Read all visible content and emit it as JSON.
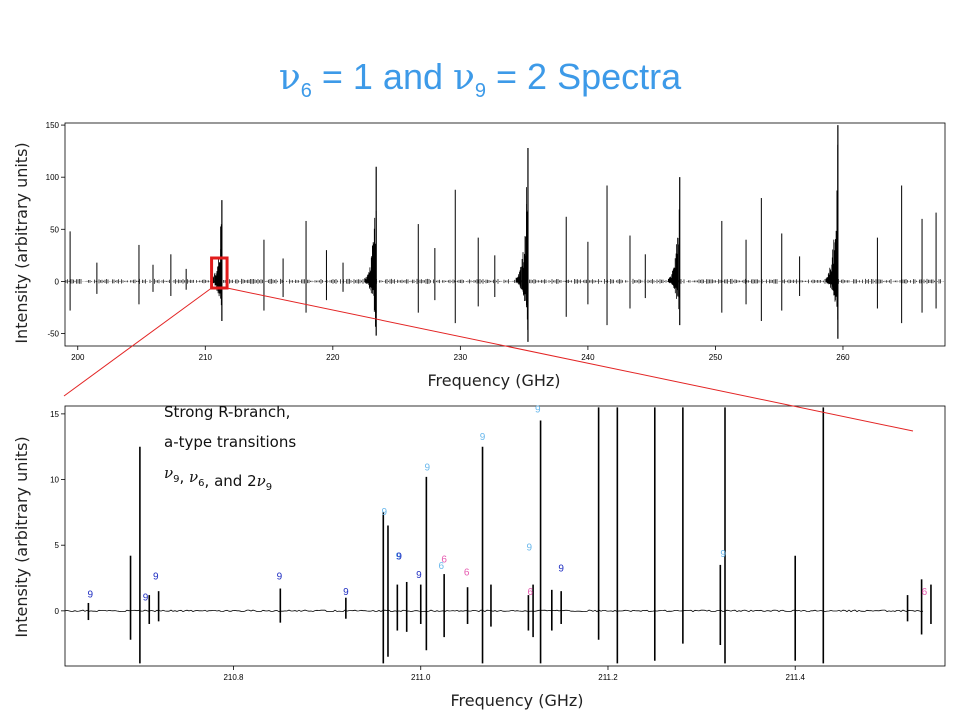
{
  "title": {
    "nu": "ν",
    "sub6": "6",
    "eq1": " = 1 and ",
    "sub9": "9",
    "eq2": " = 2 Spectra"
  },
  "colors": {
    "title": "#3d9ae8",
    "zoom_box": "#e11b1b",
    "zoom_line": "#e32424",
    "marker_nu9": "#1f2ec2",
    "marker_nu6": "#e65bb0",
    "marker_2nu9": "#6ab8ec"
  },
  "annotation": {
    "line1": "Strong R-branch,",
    "line2": "a-type transitions",
    "line3": "ν9, ν6, and 2ν9"
  },
  "chart_data": [
    {
      "type": "line",
      "title": "",
      "xlabel": "Frequency (GHz)",
      "ylabel": "Intensity (arbitrary units)",
      "xlim": [
        199,
        268
      ],
      "ylim": [
        -62,
        152
      ],
      "xticks": [
        200,
        210,
        220,
        230,
        240,
        250,
        260
      ],
      "yticks": [
        -50,
        0,
        50,
        100,
        150
      ],
      "grid": false,
      "r_branch_peaks": [
        {
          "x": 211.3,
          "max": 78,
          "min": -38
        },
        {
          "x": 223.4,
          "max": 110,
          "min": -52
        },
        {
          "x": 235.3,
          "max": 128,
          "min": -58
        },
        {
          "x": 247.2,
          "max": 100,
          "min": -42
        },
        {
          "x": 259.6,
          "max": 150,
          "min": -55
        }
      ],
      "lines": [
        [
          199.4,
          48,
          -28
        ],
        [
          201.5,
          18,
          -12
        ],
        [
          204.8,
          35,
          -22
        ],
        [
          205.9,
          16,
          -10
        ],
        [
          207.3,
          26,
          -14
        ],
        [
          208.5,
          12,
          -8
        ],
        [
          214.6,
          40,
          -28
        ],
        [
          216.1,
          22,
          -15
        ],
        [
          217.9,
          58,
          -30
        ],
        [
          219.5,
          30,
          -18
        ],
        [
          220.8,
          18,
          -10
        ],
        [
          226.7,
          55,
          -30
        ],
        [
          228.0,
          32,
          -18
        ],
        [
          229.6,
          88,
          -40
        ],
        [
          231.4,
          42,
          -24
        ],
        [
          232.7,
          25,
          -15
        ],
        [
          238.3,
          62,
          -34
        ],
        [
          240.0,
          38,
          -22
        ],
        [
          241.5,
          92,
          -42
        ],
        [
          243.3,
          44,
          -26
        ],
        [
          244.5,
          26,
          -16
        ],
        [
          250.5,
          58,
          -30
        ],
        [
          252.4,
          40,
          -22
        ],
        [
          253.6,
          80,
          -38
        ],
        [
          255.2,
          46,
          -28
        ],
        [
          256.6,
          24,
          -14
        ],
        [
          262.7,
          42,
          -26
        ],
        [
          264.6,
          92,
          -40
        ],
        [
          266.2,
          60,
          -30
        ],
        [
          267.3,
          66,
          -26
        ]
      ],
      "zoom_region": [
        210.65,
        211.55
      ]
    },
    {
      "type": "line",
      "title": "",
      "xlabel": "Frequency (GHz)",
      "ylabel": "Intensity (arbitrary units)",
      "xlim": [
        210.62,
        211.56
      ],
      "ylim": [
        -4.2,
        15.6
      ],
      "xticks": [
        210.8,
        211.0,
        211.2,
        211.4
      ],
      "yticks": [
        0,
        5,
        10,
        15
      ],
      "grid": false,
      "lines": [
        [
          210.645,
          0.6,
          -0.7
        ],
        [
          210.69,
          4.2,
          -2.2
        ],
        [
          210.7,
          12.5,
          -4.0
        ],
        [
          210.71,
          1.2,
          -1.0
        ],
        [
          210.72,
          1.5,
          -0.8
        ],
        [
          210.85,
          1.7,
          -0.9
        ],
        [
          210.92,
          1.0,
          -0.6
        ],
        [
          210.96,
          7.5,
          -4.0
        ],
        [
          210.965,
          6.5,
          -3.5
        ],
        [
          210.975,
          2.0,
          -1.5
        ],
        [
          210.985,
          2.2,
          -1.6
        ],
        [
          211.0,
          2.0,
          -1.0
        ],
        [
          211.006,
          10.2,
          -3.0
        ],
        [
          211.025,
          2.8,
          -2.0
        ],
        [
          211.05,
          1.8,
          -1.0
        ],
        [
          211.066,
          12.5,
          -4.0
        ],
        [
          211.075,
          2.0,
          -1.2
        ],
        [
          211.115,
          1.2,
          -1.5
        ],
        [
          211.12,
          2.0,
          -2.0
        ],
        [
          211.128,
          14.5,
          -4.0
        ],
        [
          211.14,
          1.6,
          -1.5
        ],
        [
          211.15,
          1.5,
          -1.0
        ],
        [
          211.19,
          15.5,
          -2.2
        ],
        [
          211.21,
          15.5,
          -4.0
        ],
        [
          211.25,
          15.5,
          -3.8
        ],
        [
          211.28,
          15.5,
          -2.5
        ],
        [
          211.32,
          3.5,
          -2.6
        ],
        [
          211.325,
          15.5,
          -4.0
        ],
        [
          211.4,
          4.2,
          -3.8
        ],
        [
          211.43,
          15.5,
          -4.0
        ],
        [
          211.52,
          1.2,
          -0.8
        ],
        [
          211.535,
          2.4,
          -1.8
        ],
        [
          211.545,
          2.0,
          -1.0
        ]
      ],
      "assignment_labels": [
        {
          "text": "9",
          "x": 210.647,
          "y": 1.0,
          "kind": "nu9"
        },
        {
          "text": "9",
          "x": 210.706,
          "y": 0.8,
          "kind": "nu9"
        },
        {
          "text": "9",
          "x": 210.717,
          "y": 2.4,
          "kind": "nu9"
        },
        {
          "text": "9",
          "x": 210.849,
          "y": 2.4,
          "kind": "nu9"
        },
        {
          "text": "9",
          "x": 210.92,
          "y": 1.2,
          "kind": "nu9"
        },
        {
          "text": "9",
          "x": 210.961,
          "y": 7.3,
          "kind": "2nu9"
        },
        {
          "text": "9",
          "x": 210.976,
          "y": 3.9,
          "kind": "2nu9"
        },
        {
          "text": "9",
          "x": 210.977,
          "y": 3.9,
          "kind": "nu9"
        },
        {
          "text": "9",
          "x": 211.007,
          "y": 10.7,
          "kind": "2nu9"
        },
        {
          "text": "9",
          "x": 210.998,
          "y": 2.5,
          "kind": "nu9"
        },
        {
          "text": "6",
          "x": 211.025,
          "y": 3.7,
          "kind": "nu6"
        },
        {
          "text": "6",
          "x": 211.022,
          "y": 3.2,
          "kind": "2nu9"
        },
        {
          "text": "6",
          "x": 211.049,
          "y": 2.7,
          "kind": "nu6"
        },
        {
          "text": "9",
          "x": 211.066,
          "y": 13.0,
          "kind": "2nu9"
        },
        {
          "text": "9",
          "x": 211.116,
          "y": 4.6,
          "kind": "2nu9"
        },
        {
          "text": "6",
          "x": 211.117,
          "y": 1.2,
          "kind": "nu6"
        },
        {
          "text": "9",
          "x": 211.125,
          "y": 15.1,
          "kind": "2nu9"
        },
        {
          "text": "9",
          "x": 211.15,
          "y": 3.0,
          "kind": "nu9"
        },
        {
          "text": "9",
          "x": 211.323,
          "y": 4.1,
          "kind": "2nu9"
        },
        {
          "text": "6",
          "x": 211.538,
          "y": 1.2,
          "kind": "nu6"
        }
      ]
    }
  ]
}
